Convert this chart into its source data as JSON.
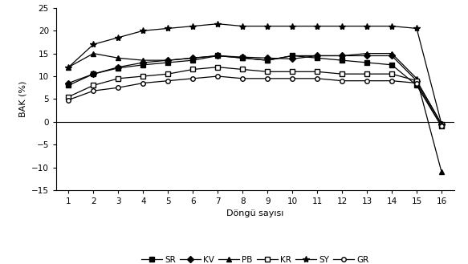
{
  "x": [
    1,
    2,
    3,
    4,
    5,
    6,
    7,
    8,
    9,
    10,
    11,
    12,
    13,
    14,
    15,
    16
  ],
  "series": {
    "SR": [
      8.0,
      10.5,
      11.8,
      12.5,
      13.0,
      13.5,
      14.5,
      14.0,
      13.5,
      14.5,
      14.0,
      13.5,
      13.0,
      12.5,
      8.0,
      -1.0
    ],
    "KV": [
      8.5,
      10.5,
      12.0,
      13.0,
      13.5,
      14.0,
      14.5,
      14.2,
      14.0,
      13.8,
      14.5,
      14.5,
      14.5,
      14.5,
      9.0,
      -0.5
    ],
    "PB": [
      12.0,
      15.0,
      14.0,
      13.5,
      13.5,
      14.0,
      14.5,
      14.0,
      13.5,
      14.5,
      14.5,
      14.5,
      15.0,
      15.0,
      9.5,
      -11.0
    ],
    "KR": [
      5.5,
      8.0,
      9.5,
      10.0,
      10.5,
      11.5,
      12.0,
      11.5,
      11.0,
      11.0,
      11.0,
      10.5,
      10.5,
      10.5,
      9.0,
      -0.5
    ],
    "SY": [
      12.0,
      17.0,
      18.5,
      20.0,
      20.5,
      21.0,
      21.5,
      21.0,
      21.0,
      21.0,
      21.0,
      21.0,
      21.0,
      21.0,
      20.5,
      -0.5
    ],
    "GR": [
      4.8,
      6.8,
      7.5,
      8.5,
      9.0,
      9.5,
      10.0,
      9.5,
      9.5,
      9.5,
      9.5,
      9.0,
      9.0,
      9.0,
      8.5,
      -1.0
    ]
  },
  "line_color": "black",
  "xlabel": "Döngü sayısı",
  "ylabel": "BAK (%)",
  "ylim": [
    -15,
    25
  ],
  "xlim": [
    0.5,
    16.5
  ],
  "yticks": [
    -15,
    -10,
    -5,
    0,
    5,
    10,
    15,
    20,
    25
  ],
  "xticks": [
    1,
    2,
    3,
    4,
    5,
    6,
    7,
    8,
    9,
    10,
    11,
    12,
    13,
    14,
    15,
    16
  ],
  "legend_order": [
    "SR",
    "KV",
    "PB",
    "KR",
    "SY",
    "GR"
  ],
  "figsize": [
    5.83,
    3.29
  ],
  "dpi": 100
}
